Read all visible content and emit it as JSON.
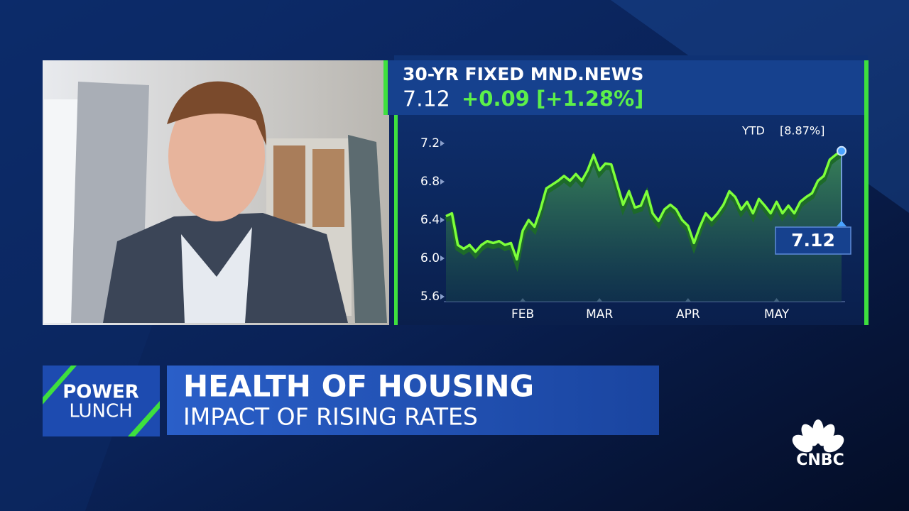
{
  "chart_data": {
    "type": "line",
    "title": "30-YR FIXED MND.NEWS",
    "last": 7.12,
    "change": "+0.09",
    "change_pct": "[+1.28%]",
    "period": "YTD",
    "period_change": "[8.87%]",
    "color": "#7dff3a",
    "categories": [
      null,
      null,
      null,
      null,
      null,
      null,
      null,
      null,
      null,
      null,
      null,
      null,
      null,
      "FEB",
      null,
      null,
      null,
      null,
      null,
      null,
      null,
      null,
      null,
      null,
      null,
      null,
      "MAR",
      null,
      null,
      null,
      null,
      null,
      null,
      null,
      null,
      null,
      null,
      null,
      null,
      null,
      null,
      "APR",
      null,
      null,
      null,
      null,
      null,
      null,
      null,
      null,
      null,
      null,
      null,
      null,
      null,
      null,
      "MAY",
      null,
      null,
      null,
      null,
      null,
      null,
      null,
      null,
      null,
      null,
      null
    ],
    "values": [
      6.44,
      6.47,
      6.14,
      6.1,
      6.14,
      6.07,
      6.14,
      6.18,
      6.16,
      6.18,
      6.14,
      6.16,
      5.99,
      6.29,
      6.4,
      6.33,
      6.51,
      6.73,
      6.77,
      6.81,
      6.86,
      6.81,
      6.88,
      6.81,
      6.92,
      7.08,
      6.92,
      6.99,
      6.98,
      6.77,
      6.56,
      6.7,
      6.53,
      6.55,
      6.7,
      6.47,
      6.39,
      6.51,
      6.56,
      6.51,
      6.4,
      6.34,
      6.16,
      6.33,
      6.47,
      6.4,
      6.47,
      6.56,
      6.7,
      6.64,
      6.51,
      6.59,
      6.47,
      6.62,
      6.55,
      6.47,
      6.59,
      6.47,
      6.55,
      6.47,
      6.59,
      6.64,
      6.68,
      6.81,
      6.86,
      7.03,
      7.08,
      7.12
    ],
    "ylim": [
      5.6,
      7.2
    ],
    "yticks": [
      5.6,
      {
        "value": 6,
        "label": "6.0"
      },
      6.4,
      6.8,
      7.2
    ]
  },
  "lower_third": {
    "show_line1": "POWER",
    "show_line2": "LUNCH",
    "headline": "HEALTH OF HOUSING",
    "subheadline": "IMPACT OF RISING RATES"
  },
  "network": "CNBC"
}
